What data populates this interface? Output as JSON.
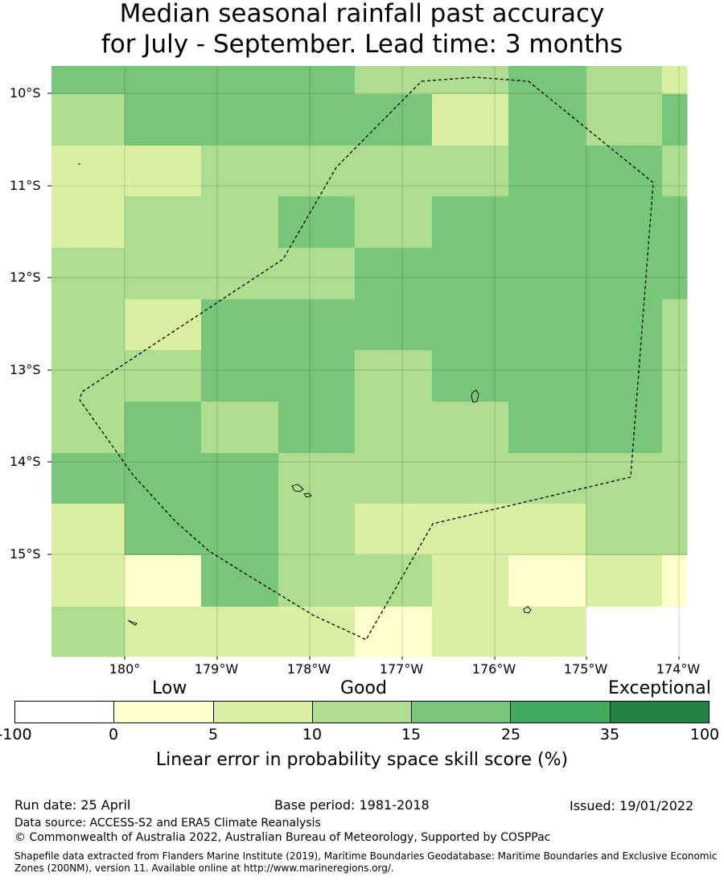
{
  "title": {
    "line1": "Median seasonal rainfall past accuracy",
    "line2": "for July - September. Lead time: 3 months"
  },
  "map": {
    "lat_labels": [
      "10°S",
      "11°S",
      "12°S",
      "13°S",
      "14°S",
      "15°S"
    ],
    "lon_labels": [
      "180°",
      "179°W",
      "178°W",
      "177°W",
      "176°W",
      "175°W",
      "174°W"
    ],
    "colors": {
      "white": "#ffffff",
      "c0_5": "#ffffcc",
      "c5_10": "#d9f0a3",
      "c10_15": "#addd8e",
      "c15_25": "#78c679",
      "c25_35": "#41ab5d",
      "c35_100": "#238443"
    },
    "grid_levels": [
      [
        4,
        4,
        4,
        4,
        3,
        3,
        4,
        3,
        2
      ],
      [
        3,
        4,
        4,
        4,
        4,
        2,
        4,
        3,
        4
      ],
      [
        2,
        2,
        3,
        3,
        3,
        3,
        4,
        4,
        3
      ],
      [
        2,
        3,
        3,
        4,
        3,
        4,
        4,
        4,
        4
      ],
      [
        3,
        3,
        3,
        3,
        4,
        4,
        4,
        4,
        4
      ],
      [
        3,
        2,
        4,
        4,
        4,
        4,
        4,
        4,
        3
      ],
      [
        3,
        3,
        4,
        4,
        3,
        4,
        4,
        4,
        3
      ],
      [
        3,
        4,
        3,
        4,
        3,
        3,
        4,
        4,
        3
      ],
      [
        4,
        4,
        4,
        3,
        3,
        3,
        3,
        3,
        3
      ],
      [
        2,
        4,
        4,
        3,
        2,
        2,
        2,
        3,
        3
      ],
      [
        2,
        1,
        4,
        3,
        3,
        2,
        1,
        2,
        1
      ],
      [
        3,
        2,
        2,
        2,
        1,
        2,
        2,
        0,
        0
      ]
    ]
  },
  "legend": {
    "categories": [
      "Low",
      "Good",
      "Exceptional"
    ],
    "ticks": [
      "-100",
      "0",
      "5",
      "10",
      "15",
      "25",
      "35",
      "100"
    ],
    "segment_colors": [
      "#ffffff",
      "#ffffcc",
      "#d9f0a3",
      "#addd8e",
      "#78c679",
      "#41ab5d",
      "#238443"
    ],
    "label": "Linear error in probability space skill score (%)"
  },
  "footer": {
    "run_date": "Run date: 25 April",
    "base_period": "Base period: 1981-2018",
    "issued": "Issued: 19/01/2022",
    "data_source": "Data source: ACCESS-S2 and ERA5 Climate Reanalysis",
    "copyright": "© Commonwealth of Australia 2022, Australian Bureau of Meteorology, Supported by COSPPac",
    "shapefile_line1": "Shapefile data extracted from Flanders Marine Institute (2019), Maritime Boundaries Geodatabase: Maritime Boundaries and Exclusive Economic",
    "shapefile_line2": "Zones (200NM), version 11. Available online at http://www.marineregions.org/."
  }
}
